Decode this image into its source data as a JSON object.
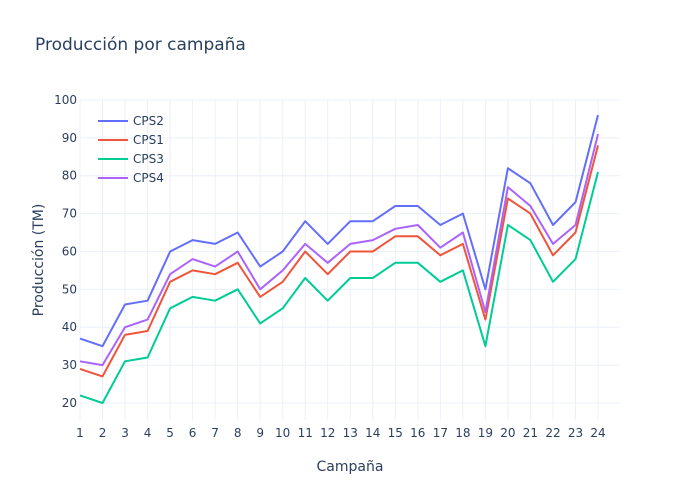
{
  "chart_data": {
    "type": "line",
    "title": "Producción por campaña",
    "xlabel": "Campaña",
    "ylabel": "Producción (TM)",
    "x": [
      1,
      2,
      3,
      4,
      5,
      6,
      7,
      8,
      9,
      10,
      11,
      12,
      13,
      14,
      15,
      16,
      17,
      18,
      19,
      20,
      21,
      22,
      23,
      24
    ],
    "xlim": [
      1,
      24
    ],
    "ylim": [
      15.5,
      100
    ],
    "yticks": [
      20,
      30,
      40,
      50,
      60,
      70,
      80,
      90,
      100
    ],
    "grid": true,
    "legend_position": "top-left",
    "series": [
      {
        "name": "CPS2",
        "color": "#636efa",
        "values": [
          37,
          35,
          46,
          47,
          60,
          63,
          62,
          65,
          56,
          60,
          68,
          62,
          68,
          68,
          72,
          72,
          67,
          70,
          50,
          82,
          78,
          67,
          73,
          96
        ]
      },
      {
        "name": "CPS1",
        "color": "#ef553b",
        "values": [
          29,
          27,
          38,
          39,
          52,
          55,
          54,
          57,
          48,
          52,
          60,
          54,
          60,
          60,
          64,
          64,
          59,
          62,
          42,
          74,
          70,
          59,
          65,
          88
        ]
      },
      {
        "name": "CPS3",
        "color": "#00cc96",
        "values": [
          22,
          20,
          31,
          32,
          45,
          48,
          47,
          50,
          41,
          45,
          53,
          47,
          53,
          53,
          57,
          57,
          52,
          55,
          35,
          67,
          63,
          52,
          58,
          81
        ]
      },
      {
        "name": "CPS4",
        "color": "#ab63fa",
        "values": [
          31,
          30,
          40,
          42,
          54,
          58,
          56,
          60,
          50,
          55,
          62,
          57,
          62,
          63,
          66,
          67,
          61,
          65,
          44,
          77,
          72,
          62,
          67,
          91
        ]
      }
    ]
  }
}
